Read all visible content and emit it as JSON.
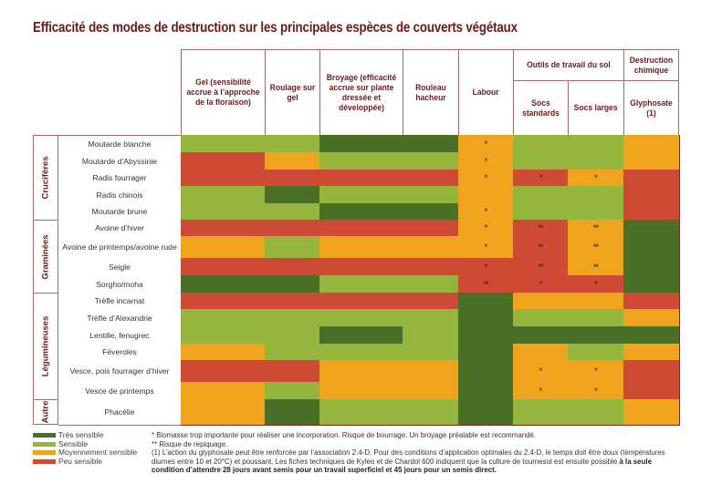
{
  "title": "Efficacité des modes de destruction sur les principales espèces de couverts végétaux",
  "colors": {
    "tres_sensible": "#4a7028",
    "sensible": "#95b53d",
    "moyennement_sensible": "#f0a31d",
    "peu_sensible": "#cf4a35",
    "border": "#a56a6a",
    "title": "#6b1a1a"
  },
  "headers": {
    "gel": "Gel (sensibilité accrue à l’approche de la floraison)",
    "roulage": "Roulage sur gel",
    "broyage": "Broyage (efficacité accrue sur plante dressée et développée)",
    "rouleau": "Rouleau hacheur",
    "labour": "Labour",
    "outils": "Outils de travail du sol",
    "socs_standards": "Socs standards",
    "socs_larges": "Socs larges",
    "destruction": "Destruction chimique",
    "glyphosate": "Glyphosate (1)"
  },
  "groups": [
    {
      "label": "Crucifères"
    },
    {
      "label": "Graminées"
    },
    {
      "label": "Légumineuses"
    },
    {
      "label": "Autre"
    }
  ],
  "rows": [
    {
      "species": "Moutarde blanche",
      "group": 0,
      "cells": [
        "S",
        "S",
        "T",
        "T",
        "M*",
        "S",
        "S",
        "M"
      ]
    },
    {
      "species": "Moutarde d’Abyssinie",
      "group": 0,
      "cells": [
        "P",
        "M",
        "S",
        "S",
        "M*",
        "S",
        "S",
        "M"
      ]
    },
    {
      "species": "Radis fourrager",
      "group": 0,
      "cells": [
        "P",
        "P",
        "P",
        "P",
        "M*",
        "P*",
        "M*",
        "P"
      ]
    },
    {
      "species": "Radis chinois",
      "group": 0,
      "cells": [
        "S",
        "T",
        "S",
        "S",
        "M",
        "S",
        "S",
        "P"
      ]
    },
    {
      "species": "Moutarde brune",
      "group": 0,
      "cells": [
        "S",
        "S",
        "T",
        "T",
        "M*",
        "S",
        "S",
        "P"
      ]
    },
    {
      "species": "Avoine d’hiver",
      "group": 1,
      "cells": [
        "P",
        "P",
        "P",
        "P",
        "M*",
        "P**",
        "M**",
        "T"
      ]
    },
    {
      "species": "Avoine de printemps/avoine rude",
      "group": 1,
      "cells": [
        "M",
        "S",
        "M",
        "M",
        "M*",
        "P**",
        "M**",
        "T"
      ]
    },
    {
      "species": "Seigle",
      "group": 1,
      "cells": [
        "P",
        "P",
        "P",
        "P",
        "P*",
        "P**",
        "M**",
        "T"
      ]
    },
    {
      "species": "Sorgho/moha",
      "group": 1,
      "cells": [
        "T",
        "T",
        "S",
        "S",
        "P**",
        "P*",
        "P*",
        "T"
      ]
    },
    {
      "species": "Trèfle incarnat",
      "group": 2,
      "cells": [
        "P",
        "P",
        "P",
        "P",
        "T",
        "M",
        "M",
        "P"
      ]
    },
    {
      "species": "Trèfle d’Alexandrie",
      "group": 2,
      "cells": [
        "S",
        "S",
        "S",
        "S",
        "T",
        "S",
        "S",
        "M"
      ]
    },
    {
      "species": "Lentille, fenugrec",
      "group": 2,
      "cells": [
        "S",
        "S",
        "T",
        "S",
        "T",
        "T",
        "T",
        "T"
      ]
    },
    {
      "species": "Féveroles",
      "group": 2,
      "cells": [
        "M",
        "S",
        "S",
        "S",
        "T",
        "M",
        "S",
        "M"
      ]
    },
    {
      "species": "Vesce, pois fourrager d’hiver",
      "group": 2,
      "cells": [
        "P",
        "P",
        "M",
        "M",
        "T",
        "M*",
        "M*",
        "P"
      ]
    },
    {
      "species": "Vesce de printemps",
      "group": 2,
      "cells": [
        "M",
        "S",
        "M",
        "M",
        "T",
        "M*",
        "M*",
        "P"
      ]
    },
    {
      "species": "Phacélie",
      "group": 3,
      "cells": [
        "M",
        "T",
        "S",
        "S",
        "T",
        "S",
        "S",
        "M"
      ]
    }
  ],
  "legend": [
    {
      "key": "T",
      "label": "Très sensible"
    },
    {
      "key": "S",
      "label": "Sensible"
    },
    {
      "key": "M",
      "label": "Moyennement sensible"
    },
    {
      "key": "P",
      "label": "Peu sensible"
    }
  ],
  "notes": {
    "n1": "* Biomasse trop importante pour réaliser une incorporation. Risque de bourrage. Un broyage préalable est recommandé.",
    "n2": "** Risque de repiquage.",
    "n3a": "(1) L’action du glyphosate peut être renforcée par l’association 2.4-D. Pour des conditions d’application optimales du 2.4-D, le temps doit être doux (températures diurnes entre 10 et 20°C) et poussant. Les fiches techniques de Kyleo et de Chardol 600 indiquent que la culture de tournesol est ensuite possible ",
    "n3b": "à la seule condition d’attendre 28 jours avant semis pour un travail superficiel et 45 jours pour un semis direct."
  }
}
